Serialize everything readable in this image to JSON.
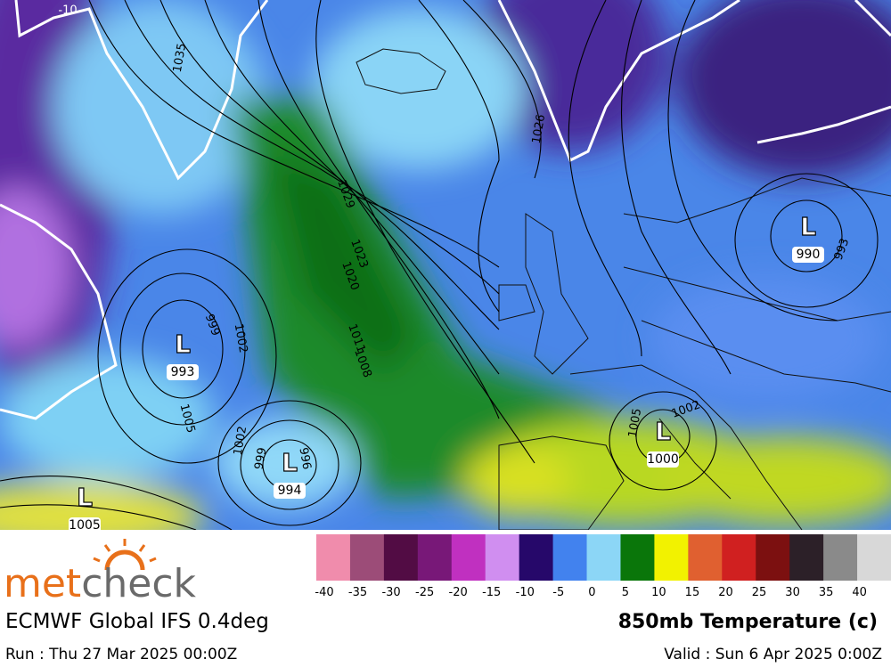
{
  "map": {
    "labels": [
      "-10",
      1035,
      1026,
      1029,
      1023,
      1020,
      1011,
      1008,
      999,
      1002,
      993,
      1005,
      1002,
      999,
      996,
      993,
      1002,
      1005
    ],
    "lows": [
      {
        "symbol": "L",
        "pressure": 993
      },
      {
        "symbol": "L",
        "pressure": 994
      },
      {
        "symbol": "L",
        "pressure": 1005
      },
      {
        "symbol": "L",
        "pressure": 990
      },
      {
        "symbol": "L",
        "pressure": 1000
      }
    ]
  },
  "legend": {
    "ticks": [
      -40,
      -35,
      -30,
      -25,
      -20,
      -15,
      -10,
      -5,
      0,
      5,
      10,
      15,
      20,
      25,
      30,
      35,
      40
    ],
    "colors": [
      "#f08cac",
      "#9c4c78",
      "#520c44",
      "#781878",
      "#c030c0",
      "#d08ef0",
      "#26086a",
      "#4282ee",
      "#8cd6f6",
      "#0a760a",
      "#f2f200",
      "#e06030",
      "#d02020",
      "#7c1010",
      "#2c2028",
      "#8a8a8a",
      "#d8d8d8"
    ]
  },
  "footer": {
    "logo": [
      "met",
      "check"
    ],
    "model": "ECMWF Global IFS 0.4deg",
    "field": "850mb Temperature (c)",
    "run": "Run : Thu 27 Mar 2025 00:00Z",
    "valid": "Valid : Sun 6 Apr 2025 0:00Z"
  }
}
